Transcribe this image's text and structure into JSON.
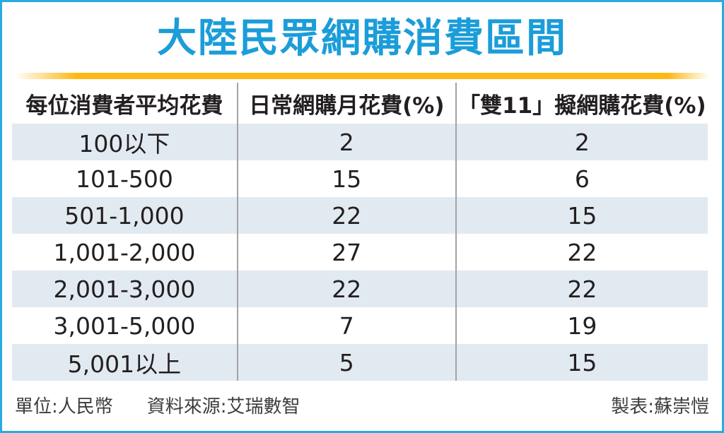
{
  "title": "大陸民眾網購消費區間",
  "colors": {
    "title_blue": "#1B9DD9",
    "accent_yellow": "#FDB813",
    "row_shade": "#E2EAF1",
    "frame_border": "#29ABE2",
    "divider_gray": "#A3A3A3",
    "text_dark": "#231F20"
  },
  "table": {
    "headers": [
      "每位消費者平均花費",
      "日常網購月花費(%)",
      "「雙11」擬網購花費(%)"
    ],
    "rows": [
      [
        "100以下",
        "2",
        "2"
      ],
      [
        "101-500",
        "15",
        "6"
      ],
      [
        "501-1,000",
        "22",
        "15"
      ],
      [
        "1,001-2,000",
        "27",
        "22"
      ],
      [
        "2,001-3,000",
        "22",
        "22"
      ],
      [
        "3,001-5,000",
        "7",
        "19"
      ],
      [
        "5,001以上",
        "5",
        "15"
      ]
    ]
  },
  "footer": {
    "unit": "單位:人民幣",
    "source": "資料來源:艾瑞數智",
    "credit": "製表:蘇崇愷"
  },
  "chart_data": {
    "type": "table",
    "title": "大陸民眾網購消費區間",
    "categories": [
      "100以下",
      "101-500",
      "501-1,000",
      "1,001-2,000",
      "2,001-3,000",
      "3,001-5,000",
      "5,001以上"
    ],
    "series": [
      {
        "name": "日常網購月花費(%)",
        "values": [
          2,
          15,
          22,
          27,
          22,
          7,
          5
        ]
      },
      {
        "name": "「雙11」擬網購花費(%)",
        "values": [
          2,
          6,
          15,
          22,
          22,
          19,
          15
        ]
      }
    ],
    "unit": "人民幣",
    "source": "艾瑞數智",
    "layout": "3-column data table, alternating shaded rows, centered values"
  }
}
